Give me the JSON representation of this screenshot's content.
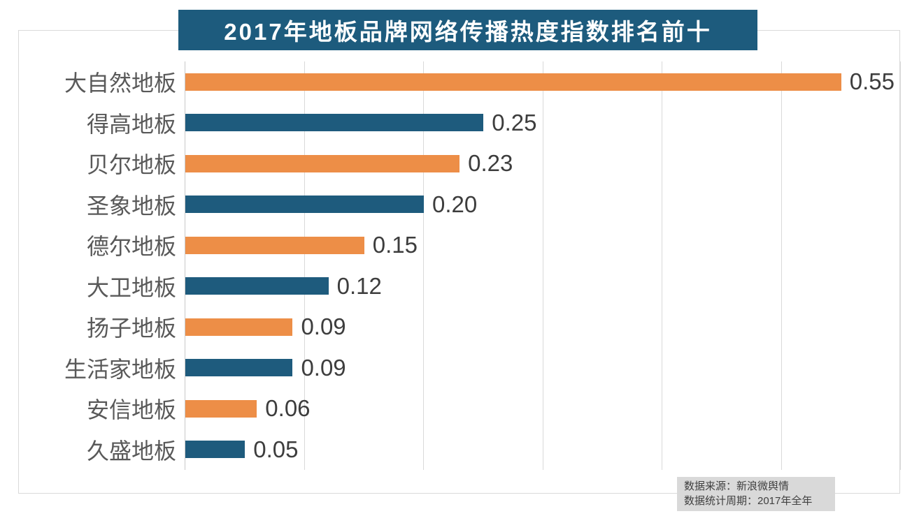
{
  "title": "2017年地板品牌网络传播热度指数排名前十",
  "colors": {
    "title_bg": "#1D5B7D",
    "title_text": "#FFFFFF",
    "bar_orange": "#ED8E47",
    "bar_blue": "#1E5B7D",
    "grid_line": "#D9D9D9",
    "frame_border": "#D9D9D9",
    "category_text": "#595959",
    "value_text": "#3D3D3D",
    "note_bg": "#D9D9D9",
    "note_text": "#404040"
  },
  "chart_data": {
    "type": "bar",
    "orientation": "horizontal",
    "title": "2017年地板品牌网络传播热度指数排名前十",
    "categories": [
      "大自然地板",
      "得高地板",
      "贝尔地板",
      "圣象地板",
      "德尔地板",
      "大卫地板",
      "扬子地板",
      "生活家地板",
      "安信地板",
      "久盛地板"
    ],
    "values": [
      0.55,
      0.25,
      0.23,
      0.2,
      0.15,
      0.12,
      0.09,
      0.09,
      0.06,
      0.05
    ],
    "value_labels": [
      "0.55",
      "0.25",
      "0.23",
      "0.20",
      "0.15",
      "0.12",
      "0.09",
      "0.09",
      "0.06",
      "0.05"
    ],
    "xlabel": "",
    "ylabel": "",
    "xlim": [
      0,
      0.6
    ],
    "grid_step": 0.1,
    "grid": true,
    "legend": false,
    "bar_colors_alternate": [
      "#ED8E47",
      "#1E5B7D"
    ]
  },
  "footnote": {
    "line1": "数据来源：新浪微舆情",
    "line2": "数据统计周期：2017年全年"
  }
}
